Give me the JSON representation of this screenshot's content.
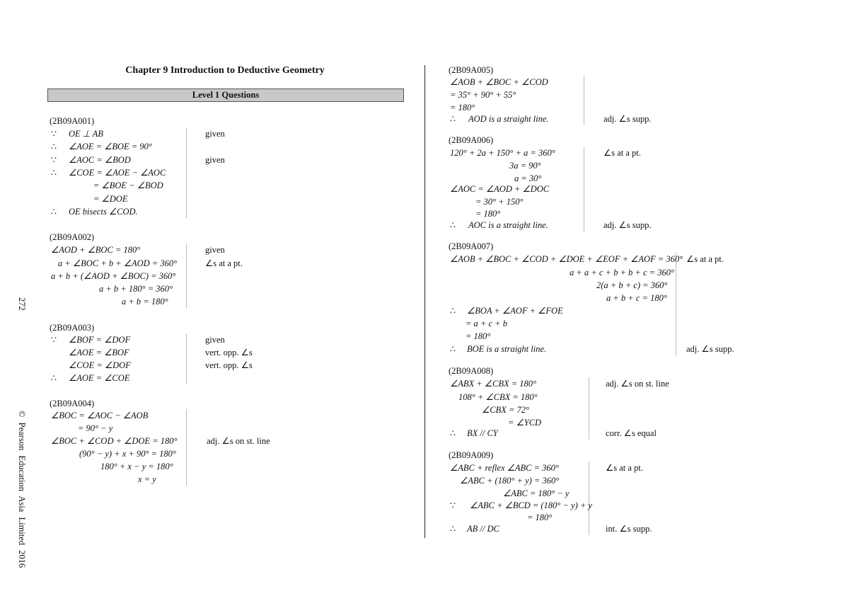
{
  "header": {
    "chapter_title": "Chapter 9    Introduction to Deductive Geometry",
    "level": "Level 1 Questions"
  },
  "margin": {
    "page_number": "272",
    "copyright": "© Pearson Education Asia Limited 2016"
  },
  "questions": [
    {
      "id": "(2B09A001)",
      "lines": [
        {
          "sym": "∵",
          "expr": "OE ⊥ AB",
          "reason": "given"
        },
        {
          "sym": "∴",
          "expr": "∠AOE = ∠BOE = 90°",
          "reason": ""
        },
        {
          "sym": "∵",
          "expr": "∠AOC = ∠BOD",
          "reason": "given"
        },
        {
          "sym": "∴",
          "expr": "∠COE = ∠AOE − ∠AOC",
          "reason": ""
        },
        {
          "sym": "",
          "expr": "= ∠BOE − ∠BOD",
          "reason": ""
        },
        {
          "sym": "",
          "expr": "= ∠DOE",
          "reason": ""
        },
        {
          "sym": "∴",
          "expr": "OE bisects ∠COD.",
          "reason": ""
        }
      ]
    },
    {
      "id": "(2B09A002)",
      "lines": [
        {
          "sym": "",
          "expr": "∠AOD + ∠BOC = 180°",
          "reason": "given"
        },
        {
          "sym": "",
          "expr": "a + ∠BOC + b + ∠AOD = 360°",
          "reason": "∠s at a pt."
        },
        {
          "sym": "",
          "expr": "a + b + (∠AOD + ∠BOC) = 360°",
          "reason": ""
        },
        {
          "sym": "",
          "expr": "a + b + 180° = 360°",
          "reason": ""
        },
        {
          "sym": "",
          "expr": "a + b = 180°",
          "reason": ""
        }
      ]
    },
    {
      "id": "(2B09A003)",
      "lines": [
        {
          "sym": "∵",
          "expr": "∠BOF = ∠DOF",
          "reason": "given"
        },
        {
          "sym": "",
          "expr": "∠AOE = ∠BOF",
          "reason": "vert. opp. ∠s"
        },
        {
          "sym": "",
          "expr": "∠COE = ∠DOF",
          "reason": "vert. opp. ∠s"
        },
        {
          "sym": "∴",
          "expr": "∠AOE = ∠COE",
          "reason": ""
        }
      ]
    },
    {
      "id": "(2B09A004)",
      "lines": [
        {
          "sym": "",
          "expr": "∠BOC = ∠AOC − ∠AOB",
          "reason": ""
        },
        {
          "sym": "",
          "expr": "= 90° − y",
          "reason": ""
        },
        {
          "sym": "",
          "expr": "∠BOC + ∠COD + ∠DOE = 180°",
          "reason": "adj. ∠s on st. line"
        },
        {
          "sym": "",
          "expr": "(90° − y) + x + 90° = 180°",
          "reason": ""
        },
        {
          "sym": "",
          "expr": "180° + x − y = 180°",
          "reason": ""
        },
        {
          "sym": "",
          "expr": "x = y",
          "reason": ""
        }
      ]
    },
    {
      "id": "(2B09A005)",
      "lines": [
        {
          "sym": "",
          "expr": "∠AOB + ∠BOC + ∠COD",
          "reason": ""
        },
        {
          "sym": "",
          "expr": "= 35° + 90° + 55°",
          "reason": ""
        },
        {
          "sym": "",
          "expr": "= 180°",
          "reason": ""
        },
        {
          "sym": "∴",
          "expr": "AOD is a straight line.",
          "reason": "adj. ∠s supp."
        }
      ]
    },
    {
      "id": "(2B09A006)",
      "lines": [
        {
          "sym": "",
          "expr": "120° + 2a + 150° + a = 360°",
          "reason": "∠s at a pt."
        },
        {
          "sym": "",
          "expr": "3a = 90°",
          "reason": ""
        },
        {
          "sym": "",
          "expr": "a = 30°",
          "reason": ""
        },
        {
          "sym": "",
          "expr": "∠AOC = ∠AOD + ∠DOC",
          "reason": ""
        },
        {
          "sym": "",
          "expr": "= 30° + 150°",
          "reason": ""
        },
        {
          "sym": "",
          "expr": "= 180°",
          "reason": ""
        },
        {
          "sym": "∴",
          "expr": "AOC is a straight line.",
          "reason": "adj. ∠s supp."
        }
      ]
    },
    {
      "id": "(2B09A007)",
      "lines": [
        {
          "sym": "",
          "expr": "∠AOB + ∠BOC + ∠COD + ∠DOE + ∠EOF + ∠AOF = 360°",
          "reason": "∠s at a pt."
        },
        {
          "sym": "",
          "expr": "a + a + c + b + b + c = 360°",
          "reason": ""
        },
        {
          "sym": "",
          "expr": "2(a + b + c) = 360°",
          "reason": ""
        },
        {
          "sym": "",
          "expr": "a + b + c = 180°",
          "reason": ""
        },
        {
          "sym": "∴",
          "expr": "∠BOA + ∠AOF + ∠FOE",
          "reason": ""
        },
        {
          "sym": "",
          "expr": "= a + c + b",
          "reason": ""
        },
        {
          "sym": "",
          "expr": "= 180°",
          "reason": ""
        },
        {
          "sym": "∴",
          "expr": "BOE is a straight line.",
          "reason": "adj. ∠s supp."
        }
      ]
    },
    {
      "id": "(2B09A008)",
      "lines": [
        {
          "sym": "",
          "expr": "∠ABX + ∠CBX = 180°",
          "reason": "adj. ∠s on st. line"
        },
        {
          "sym": "",
          "expr": "108° + ∠CBX = 180°",
          "reason": ""
        },
        {
          "sym": "",
          "expr": "∠CBX = 72°",
          "reason": ""
        },
        {
          "sym": "",
          "expr": "= ∠YCD",
          "reason": ""
        },
        {
          "sym": "∴",
          "expr": "BX // CY",
          "reason": "corr. ∠s equal"
        }
      ]
    },
    {
      "id": "(2B09A009)",
      "lines": [
        {
          "sym": "",
          "expr": "∠ABC + reflex ∠ABC = 360°",
          "reason": "∠s at a pt."
        },
        {
          "sym": "",
          "expr": "∠ABC + (180° + y) = 360°",
          "reason": ""
        },
        {
          "sym": "",
          "expr": "∠ABC = 180° − y",
          "reason": ""
        },
        {
          "sym": "∵",
          "expr": "∠ABC + ∠BCD = (180° − y) + y",
          "reason": ""
        },
        {
          "sym": "",
          "expr": "= 180°",
          "reason": ""
        },
        {
          "sym": "∴",
          "expr": "AB // DC",
          "reason": "int. ∠s supp."
        }
      ]
    }
  ]
}
